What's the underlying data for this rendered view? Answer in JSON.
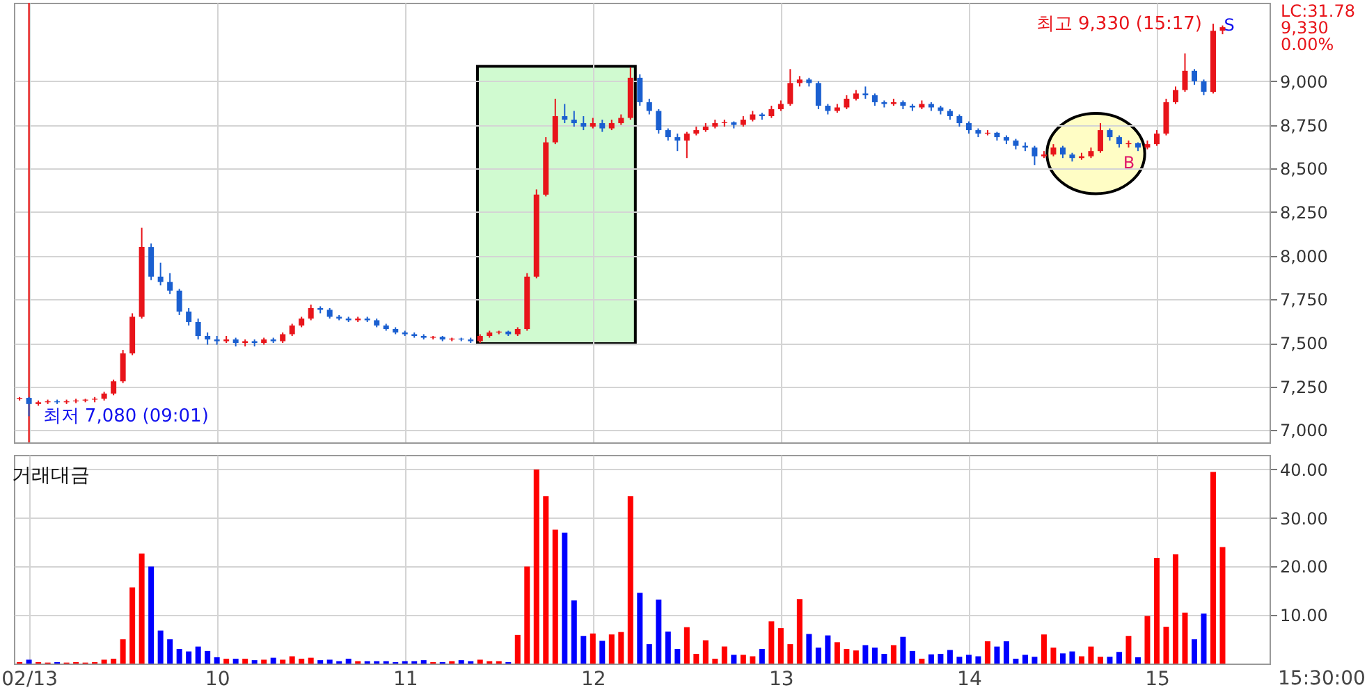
{
  "chart_data": [
    {
      "type": "candlestick",
      "xlim": [
        8.92,
        15.6
      ],
      "ylim": [
        6930,
        9450
      ],
      "xticks": [
        9,
        10,
        11,
        12,
        13,
        14,
        15
      ],
      "yticks": [
        {
          "value": 7000,
          "label": "7,000"
        },
        {
          "value": 7250,
          "label": "7,250"
        },
        {
          "value": 7500,
          "label": "7,500"
        },
        {
          "value": 7750,
          "label": "7,750"
        },
        {
          "value": 8000,
          "label": "8,000"
        },
        {
          "value": 8250,
          "label": "8,250"
        },
        {
          "value": 8500,
          "label": "8,500"
        },
        {
          "value": 8750,
          "label": "8,750"
        },
        {
          "value": 9000,
          "label": "9,000"
        }
      ],
      "tick_labels": "y",
      "grid": true,
      "x": [
        8.95,
        9,
        9.05,
        9.1,
        9.15,
        9.2,
        9.25,
        9.3,
        9.35,
        9.4,
        9.45,
        9.5,
        9.55,
        9.6,
        9.65,
        9.7,
        9.75,
        9.8,
        9.85,
        9.9,
        9.95,
        10,
        10.05,
        10.1,
        10.15,
        10.2,
        10.25,
        10.3,
        10.35,
        10.4,
        10.45,
        10.5,
        10.55,
        10.6,
        10.65,
        10.7,
        10.75,
        10.8,
        10.85,
        10.9,
        10.95,
        11,
        11.05,
        11.1,
        11.15,
        11.2,
        11.25,
        11.3,
        11.35,
        11.4,
        11.45,
        11.5,
        11.55,
        11.6,
        11.65,
        11.7,
        11.75,
        11.8,
        11.85,
        11.9,
        11.95,
        12,
        12.05,
        12.1,
        12.15,
        12.2,
        12.25,
        12.3,
        12.35,
        12.4,
        12.45,
        12.5,
        12.55,
        12.6,
        12.65,
        12.7,
        12.75,
        12.8,
        12.85,
        12.9,
        12.95,
        13,
        13.05,
        13.1,
        13.15,
        13.2,
        13.25,
        13.3,
        13.35,
        13.4,
        13.45,
        13.5,
        13.55,
        13.6,
        13.65,
        13.7,
        13.75,
        13.8,
        13.85,
        13.9,
        13.95,
        14,
        14.05,
        14.1,
        14.15,
        14.2,
        14.25,
        14.3,
        14.35,
        14.4,
        14.45,
        14.5,
        14.55,
        14.6,
        14.65,
        14.7,
        14.75,
        14.8,
        14.85,
        14.9,
        14.95,
        15,
        15.05,
        15.1,
        15.15,
        15.2,
        15.25,
        15.3,
        15.35
      ],
      "ohlc": [
        [
          7180,
          7190,
          7170,
          7185
        ],
        [
          7185,
          7190,
          7080,
          7150
        ],
        [
          7150,
          7170,
          7140,
          7160
        ],
        [
          7160,
          7175,
          7150,
          7165
        ],
        [
          7165,
          7175,
          7150,
          7160
        ],
        [
          7160,
          7175,
          7150,
          7165
        ],
        [
          7165,
          7180,
          7155,
          7170
        ],
        [
          7170,
          7180,
          7160,
          7175
        ],
        [
          7175,
          7190,
          7160,
          7180
        ],
        [
          7180,
          7220,
          7170,
          7210
        ],
        [
          7210,
          7290,
          7200,
          7280
        ],
        [
          7280,
          7460,
          7270,
          7440
        ],
        [
          7440,
          7670,
          7430,
          7650
        ],
        [
          7650,
          8160,
          7640,
          8050
        ],
        [
          8050,
          8070,
          7860,
          7880
        ],
        [
          7880,
          7960,
          7830,
          7850
        ],
        [
          7850,
          7900,
          7780,
          7800
        ],
        [
          7800,
          7810,
          7660,
          7680
        ],
        [
          7680,
          7700,
          7600,
          7620
        ],
        [
          7620,
          7640,
          7520,
          7540
        ],
        [
          7540,
          7560,
          7490,
          7520
        ],
        [
          7520,
          7540,
          7490,
          7510
        ],
        [
          7510,
          7540,
          7500,
          7520
        ],
        [
          7520,
          7530,
          7480,
          7500
        ],
        [
          7500,
          7520,
          7480,
          7510
        ],
        [
          7510,
          7520,
          7480,
          7500
        ],
        [
          7500,
          7530,
          7490,
          7520
        ],
        [
          7520,
          7530,
          7500,
          7510
        ],
        [
          7510,
          7560,
          7500,
          7550
        ],
        [
          7550,
          7610,
          7540,
          7600
        ],
        [
          7600,
          7650,
          7590,
          7640
        ],
        [
          7640,
          7720,
          7630,
          7700
        ],
        [
          7700,
          7710,
          7670,
          7690
        ],
        [
          7690,
          7700,
          7640,
          7650
        ],
        [
          7650,
          7660,
          7630,
          7640
        ],
        [
          7640,
          7650,
          7620,
          7630
        ],
        [
          7630,
          7650,
          7620,
          7640
        ],
        [
          7640,
          7650,
          7620,
          7630
        ],
        [
          7630,
          7640,
          7590,
          7600
        ],
        [
          7600,
          7610,
          7570,
          7580
        ],
        [
          7580,
          7590,
          7550,
          7560
        ],
        [
          7560,
          7570,
          7540,
          7550
        ],
        [
          7550,
          7560,
          7530,
          7540
        ],
        [
          7540,
          7550,
          7520,
          7530
        ],
        [
          7530,
          7540,
          7520,
          7535
        ],
        [
          7535,
          7540,
          7510,
          7520
        ],
        [
          7520,
          7530,
          7510,
          7525
        ],
        [
          7525,
          7530,
          7510,
          7520
        ],
        [
          7520,
          7530,
          7500,
          7510
        ],
        [
          7510,
          7550,
          7500,
          7540
        ],
        [
          7540,
          7570,
          7530,
          7560
        ],
        [
          7560,
          7570,
          7550,
          7565
        ],
        [
          7565,
          7570,
          7540,
          7550
        ],
        [
          7550,
          7590,
          7540,
          7580
        ],
        [
          7580,
          7900,
          7570,
          7880
        ],
        [
          7880,
          8380,
          7870,
          8350
        ],
        [
          8350,
          8680,
          8340,
          8650
        ],
        [
          8650,
          8900,
          8640,
          8800
        ],
        [
          8800,
          8870,
          8760,
          8780
        ],
        [
          8780,
          8830,
          8740,
          8760
        ],
        [
          8760,
          8800,
          8720,
          8740
        ],
        [
          8740,
          8790,
          8730,
          8760
        ],
        [
          8760,
          8780,
          8710,
          8730
        ],
        [
          8730,
          8780,
          8720,
          8760
        ],
        [
          8760,
          8810,
          8750,
          8790
        ],
        [
          8790,
          9080,
          8780,
          9020
        ],
        [
          9020,
          9040,
          8860,
          8880
        ],
        [
          8880,
          8900,
          8810,
          8830
        ],
        [
          8830,
          8840,
          8700,
          8720
        ],
        [
          8720,
          8730,
          8660,
          8680
        ],
        [
          8680,
          8700,
          8600,
          8660
        ],
        [
          8660,
          8710,
          8560,
          8700
        ],
        [
          8700,
          8740,
          8690,
          8720
        ],
        [
          8720,
          8760,
          8710,
          8740
        ],
        [
          8740,
          8780,
          8730,
          8760
        ],
        [
          8760,
          8780,
          8740,
          8765
        ],
        [
          8765,
          8770,
          8730,
          8750
        ],
        [
          8750,
          8800,
          8740,
          8780
        ],
        [
          8780,
          8830,
          8770,
          8810
        ],
        [
          8810,
          8820,
          8780,
          8800
        ],
        [
          8800,
          8860,
          8790,
          8840
        ],
        [
          8840,
          8890,
          8830,
          8870
        ],
        [
          8870,
          9070,
          8860,
          8990
        ],
        [
          8990,
          9030,
          8970,
          9010
        ],
        [
          9010,
          9020,
          8970,
          8990
        ],
        [
          8990,
          9000,
          8840,
          8860
        ],
        [
          8860,
          8870,
          8810,
          8830
        ],
        [
          8830,
          8870,
          8820,
          8850
        ],
        [
          8850,
          8920,
          8840,
          8900
        ],
        [
          8900,
          8950,
          8890,
          8930
        ],
        [
          8930,
          8970,
          8900,
          8920
        ],
        [
          8920,
          8930,
          8860,
          8880
        ],
        [
          8880,
          8890,
          8850,
          8870
        ],
        [
          8870,
          8900,
          8860,
          8880
        ],
        [
          8880,
          8890,
          8840,
          8860
        ],
        [
          8860,
          8870,
          8830,
          8850
        ],
        [
          8850,
          8890,
          8840,
          8870
        ],
        [
          8870,
          8880,
          8830,
          8850
        ],
        [
          8850,
          8860,
          8810,
          8830
        ],
        [
          8830,
          8840,
          8780,
          8800
        ],
        [
          8800,
          8810,
          8740,
          8760
        ],
        [
          8760,
          8770,
          8700,
          8720
        ],
        [
          8720,
          8730,
          8680,
          8700
        ],
        [
          8700,
          8720,
          8690,
          8705
        ],
        [
          8705,
          8710,
          8660,
          8680
        ],
        [
          8680,
          8690,
          8640,
          8660
        ],
        [
          8660,
          8670,
          8610,
          8630
        ],
        [
          8630,
          8650,
          8600,
          8620
        ],
        [
          8620,
          8630,
          8520,
          8570
        ],
        [
          8570,
          8600,
          8560,
          8580
        ],
        [
          8580,
          8640,
          8570,
          8620
        ],
        [
          8620,
          8630,
          8560,
          8580
        ],
        [
          8580,
          8590,
          8540,
          8560
        ],
        [
          8560,
          8590,
          8550,
          8570
        ],
        [
          8570,
          8620,
          8560,
          8600
        ],
        [
          8600,
          8760,
          8590,
          8720
        ],
        [
          8720,
          8730,
          8660,
          8680
        ],
        [
          8680,
          8690,
          8620,
          8640
        ],
        [
          8640,
          8660,
          8620,
          8645
        ],
        [
          8645,
          8650,
          8600,
          8620
        ],
        [
          8620,
          8660,
          8610,
          8640
        ],
        [
          8640,
          8720,
          8630,
          8700
        ],
        [
          8700,
          8900,
          8690,
          8880
        ],
        [
          8880,
          8970,
          8870,
          8950
        ],
        [
          8950,
          9160,
          8940,
          9060
        ],
        [
          9060,
          9070,
          8980,
          9000
        ],
        [
          9000,
          9010,
          8920,
          8940
        ],
        [
          8940,
          9330,
          8930,
          9290
        ],
        [
          9290,
          9320,
          9270,
          9310
        ]
      ],
      "colors": [
        "#e8141a",
        "#1a5fd0",
        "#e8141a",
        "#e8141a",
        "#1a5fd0",
        "#e8141a",
        "#e8141a",
        "#e8141a",
        "#e8141a",
        "#e8141a",
        "#e8141a",
        "#e8141a",
        "#e8141a",
        "#e8141a",
        "#1a5fd0",
        "#1a5fd0",
        "#1a5fd0",
        "#1a5fd0",
        "#1a5fd0",
        "#1a5fd0",
        "#1a5fd0",
        "#1a5fd0",
        "#e8141a",
        "#1a5fd0",
        "#e8141a",
        "#1a5fd0",
        "#e8141a",
        "#1a5fd0",
        "#e8141a",
        "#e8141a",
        "#e8141a",
        "#e8141a",
        "#1a5fd0",
        "#1a5fd0",
        "#1a5fd0",
        "#1a5fd0",
        "#e8141a",
        "#1a5fd0",
        "#1a5fd0",
        "#1a5fd0",
        "#1a5fd0",
        "#1a5fd0",
        "#1a5fd0",
        "#1a5fd0",
        "#e8141a",
        "#1a5fd0",
        "#e8141a",
        "#1a5fd0",
        "#1a5fd0",
        "#e8141a",
        "#e8141a",
        "#e8141a",
        "#1a5fd0",
        "#e8141a",
        "#e8141a",
        "#e8141a",
        "#e8141a",
        "#e8141a",
        "#1a5fd0",
        "#1a5fd0",
        "#1a5fd0",
        "#e8141a",
        "#1a5fd0",
        "#e8141a",
        "#e8141a",
        "#e8141a",
        "#1a5fd0",
        "#1a5fd0",
        "#1a5fd0",
        "#1a5fd0",
        "#1a5fd0",
        "#e8141a",
        "#e8141a",
        "#e8141a",
        "#e8141a",
        "#e8141a",
        "#1a5fd0",
        "#e8141a",
        "#e8141a",
        "#1a5fd0",
        "#e8141a",
        "#e8141a",
        "#e8141a",
        "#e8141a",
        "#1a5fd0",
        "#1a5fd0",
        "#1a5fd0",
        "#e8141a",
        "#e8141a",
        "#e8141a",
        "#1a5fd0",
        "#1a5fd0",
        "#1a5fd0",
        "#e8141a",
        "#1a5fd0",
        "#1a5fd0",
        "#e8141a",
        "#1a5fd0",
        "#1a5fd0",
        "#1a5fd0",
        "#1a5fd0",
        "#1a5fd0",
        "#1a5fd0",
        "#e8141a",
        "#1a5fd0",
        "#1a5fd0",
        "#1a5fd0",
        "#1a5fd0",
        "#1a5fd0",
        "#e8141a",
        "#e8141a",
        "#1a5fd0",
        "#1a5fd0",
        "#e8141a",
        "#e8141a",
        "#e8141a",
        "#1a5fd0",
        "#1a5fd0",
        "#e8141a",
        "#1a5fd0",
        "#e8141a",
        "#e8141a",
        "#e8141a",
        "#e8141a",
        "#e8141a",
        "#1a5fd0",
        "#1a5fd0",
        "#e8141a",
        "#e8141a"
      ],
      "ref_lines": [
        {
          "axis": "x",
          "value": 9,
          "color": "#e83030"
        }
      ],
      "annotations": [
        {
          "text": "최저 7,080 (09:01)",
          "x": 9,
          "y": 7080
        },
        {
          "text": "최고 9,330 (15:17)",
          "x": 15.3,
          "y": 9330
        },
        "S",
        "B",
        "LC:31.78",
        "9,330",
        "0.00%"
      ]
    },
    {
      "type": "bar",
      "title": "거래대금",
      "xlim": [
        8.92,
        15.6
      ],
      "ylim": [
        0,
        43
      ],
      "xticks": [
        {
          "value": 9,
          "label": "02/13"
        },
        10,
        11,
        12,
        13,
        14,
        15
      ],
      "yticks": [
        {
          "value": 10,
          "label": "10.00"
        },
        {
          "value": 20,
          "label": "20.00"
        },
        {
          "value": 30,
          "label": "30.00"
        },
        {
          "value": 40,
          "label": "40.00"
        }
      ],
      "grid": true,
      "x": [
        8.95,
        9,
        9.05,
        9.1,
        9.15,
        9.2,
        9.25,
        9.3,
        9.35,
        9.4,
        9.45,
        9.5,
        9.55,
        9.6,
        9.65,
        9.7,
        9.75,
        9.8,
        9.85,
        9.9,
        9.95,
        10,
        10.05,
        10.1,
        10.15,
        10.2,
        10.25,
        10.3,
        10.35,
        10.4,
        10.45,
        10.5,
        10.55,
        10.6,
        10.65,
        10.7,
        10.75,
        10.8,
        10.85,
        10.9,
        10.95,
        11,
        11.05,
        11.1,
        11.15,
        11.2,
        11.25,
        11.3,
        11.35,
        11.4,
        11.45,
        11.5,
        11.55,
        11.6,
        11.65,
        11.7,
        11.75,
        11.8,
        11.85,
        11.9,
        11.95,
        12,
        12.05,
        12.1,
        12.15,
        12.2,
        12.25,
        12.3,
        12.35,
        12.4,
        12.45,
        12.5,
        12.55,
        12.6,
        12.65,
        12.7,
        12.75,
        12.8,
        12.85,
        12.9,
        12.95,
        13,
        13.05,
        13.1,
        13.15,
        13.2,
        13.25,
        13.3,
        13.35,
        13.4,
        13.45,
        13.5,
        13.55,
        13.6,
        13.65,
        13.7,
        13.75,
        13.8,
        13.85,
        13.9,
        13.95,
        14,
        14.05,
        14.1,
        14.15,
        14.2,
        14.25,
        14.3,
        14.35,
        14.4,
        14.45,
        14.5,
        14.55,
        14.6,
        14.65,
        14.7,
        14.75,
        14.8,
        14.85,
        14.9,
        14.95,
        15,
        15.05,
        15.1,
        15.15,
        15.2,
        15.25,
        15.3,
        15.35
      ],
      "values": [
        0.3,
        0.8,
        0.3,
        0.2,
        0.3,
        0.2,
        0.3,
        0.2,
        0.3,
        0.8,
        1,
        5,
        15.7,
        22.7,
        20,
        6.8,
        5,
        3,
        2.5,
        3.5,
        2.6,
        1.3,
        1,
        1,
        1,
        0.7,
        0.8,
        1.2,
        0.8,
        1.5,
        1,
        1.2,
        0.7,
        0.8,
        0.5,
        1,
        0.5,
        0.5,
        0.5,
        0.5,
        0.3,
        0.5,
        0.5,
        0.7,
        0.3,
        0.3,
        0.5,
        0.7,
        0.5,
        0.8,
        0.5,
        0.5,
        0.3,
        5.9,
        20,
        40,
        34.5,
        27.6,
        27,
        13,
        5.7,
        6.2,
        4.7,
        6,
        6.5,
        34.5,
        14.6,
        4,
        13.2,
        6.6,
        3,
        7.5,
        2,
        4.8,
        1,
        3.5,
        1.8,
        1.8,
        1.5,
        3,
        8.7,
        7.3,
        4,
        13.3,
        6.1,
        3.3,
        5.8,
        4.4,
        3,
        2.7,
        3.8,
        3.3,
        2,
        3.8,
        5.5,
        2.6,
        1,
        1.9,
        2,
        2.8,
        1.4,
        1.8,
        1.5,
        4.6,
        3.5,
        4.6,
        1,
        1.8,
        1.4,
        6,
        3.3,
        2.1,
        2.5,
        1.5,
        3.5,
        1.4,
        1.4,
        2.4,
        5.7,
        1.3,
        9.8,
        21.8,
        7.6,
        22.5,
        10.5,
        5,
        10.3,
        39.5,
        24
      ],
      "colors": [
        "#ff0000",
        "#0000ff",
        "#ff0000",
        "#ff0000",
        "#0000ff",
        "#ff0000",
        "#ff0000",
        "#ff0000",
        "#ff0000",
        "#ff0000",
        "#ff0000",
        "#ff0000",
        "#ff0000",
        "#ff0000",
        "#0000ff",
        "#0000ff",
        "#0000ff",
        "#0000ff",
        "#0000ff",
        "#0000ff",
        "#0000ff",
        "#0000ff",
        "#ff0000",
        "#0000ff",
        "#ff0000",
        "#0000ff",
        "#ff0000",
        "#0000ff",
        "#ff0000",
        "#ff0000",
        "#ff0000",
        "#ff0000",
        "#0000ff",
        "#0000ff",
        "#0000ff",
        "#0000ff",
        "#ff0000",
        "#0000ff",
        "#0000ff",
        "#0000ff",
        "#0000ff",
        "#0000ff",
        "#0000ff",
        "#0000ff",
        "#ff0000",
        "#0000ff",
        "#ff0000",
        "#0000ff",
        "#0000ff",
        "#ff0000",
        "#ff0000",
        "#ff0000",
        "#0000ff",
        "#ff0000",
        "#ff0000",
        "#ff0000",
        "#ff0000",
        "#ff0000",
        "#0000ff",
        "#0000ff",
        "#0000ff",
        "#ff0000",
        "#0000ff",
        "#ff0000",
        "#ff0000",
        "#ff0000",
        "#0000ff",
        "#0000ff",
        "#0000ff",
        "#0000ff",
        "#0000ff",
        "#ff0000",
        "#ff0000",
        "#ff0000",
        "#ff0000",
        "#ff0000",
        "#0000ff",
        "#ff0000",
        "#ff0000",
        "#0000ff",
        "#ff0000",
        "#ff0000",
        "#ff0000",
        "#ff0000",
        "#0000ff",
        "#0000ff",
        "#0000ff",
        "#ff0000",
        "#ff0000",
        "#ff0000",
        "#0000ff",
        "#0000ff",
        "#0000ff",
        "#ff0000",
        "#0000ff",
        "#0000ff",
        "#ff0000",
        "#0000ff",
        "#0000ff",
        "#0000ff",
        "#0000ff",
        "#0000ff",
        "#0000ff",
        "#ff0000",
        "#0000ff",
        "#0000ff",
        "#0000ff",
        "#0000ff",
        "#0000ff",
        "#ff0000",
        "#ff0000",
        "#0000ff",
        "#0000ff",
        "#ff0000",
        "#ff0000",
        "#ff0000",
        "#0000ff",
        "#0000ff",
        "#ff0000",
        "#0000ff",
        "#ff0000",
        "#ff0000",
        "#ff0000",
        "#ff0000",
        "#ff0000",
        "#0000ff",
        "#0000ff",
        "#ff0000",
        "#ff0000"
      ],
      "annotations": [
        "15:30:00"
      ]
    }
  ]
}
